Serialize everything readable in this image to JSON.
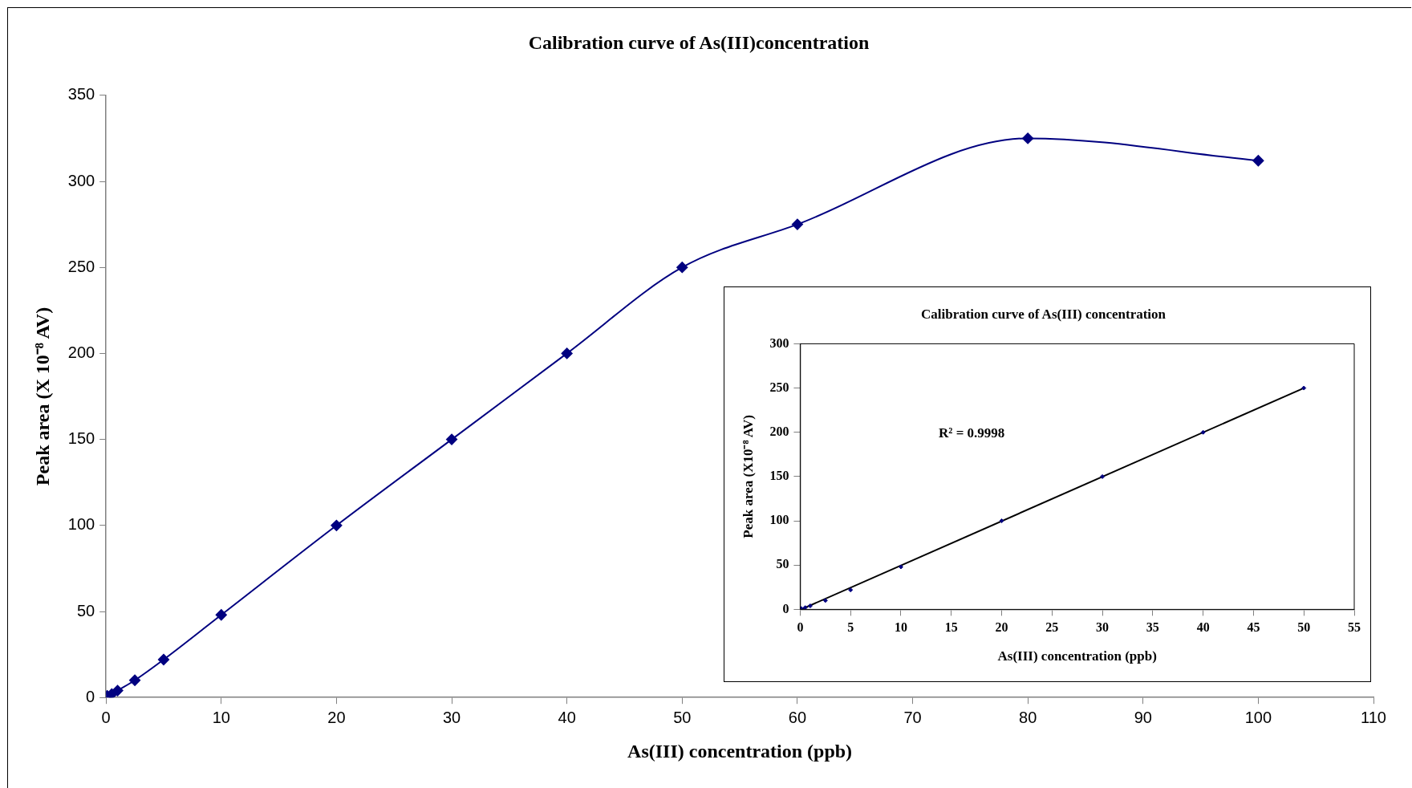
{
  "chart_data": [
    {
      "type": "line",
      "title": "Calibration curve of As(III)concentration",
      "xlabel": "As(III) concentration (ppb)",
      "ylabel": "Peak area (X 10⁻⁸ AV)",
      "xlim": [
        0,
        110
      ],
      "xticks": [
        0,
        10,
        20,
        30,
        40,
        50,
        60,
        70,
        80,
        90,
        100,
        110
      ],
      "ylim": [
        0,
        350
      ],
      "yticks": [
        0,
        50,
        100,
        150,
        200,
        250,
        300,
        350
      ],
      "grid": false,
      "legend": false,
      "marker": "diamond",
      "line_style": "solid",
      "series": [
        {
          "color": "#000080",
          "x": [
            0.1,
            0.5,
            1,
            2.5,
            5,
            10,
            20,
            30,
            40,
            50,
            60,
            80,
            100
          ],
          "values": [
            1,
            2,
            4,
            10,
            22,
            48,
            100,
            150,
            200,
            250,
            275,
            325,
            312
          ]
        }
      ]
    },
    {
      "type": "scatter",
      "title": "Calibration curve of As(III) concentration",
      "xlabel": "As(III) concentration (ppb)",
      "ylabel": "Peak area (X10⁻⁸ AV)",
      "xlim": [
        0,
        55
      ],
      "xticks": [
        0,
        5,
        10,
        15,
        20,
        25,
        30,
        35,
        40,
        45,
        50,
        55
      ],
      "ylim": [
        0,
        300
      ],
      "yticks": [
        0,
        50,
        100,
        150,
        200,
        250,
        300
      ],
      "grid": false,
      "legend": false,
      "marker": "diamond",
      "annotations": [
        "R² = 0.9998"
      ],
      "series": [
        {
          "type": "scatter",
          "color": "#000080",
          "x": [
            0.1,
            0.5,
            1,
            2.5,
            5,
            10,
            20,
            30,
            40,
            50
          ],
          "values": [
            1,
            2,
            4,
            10,
            22,
            48,
            100,
            150,
            200,
            250
          ]
        },
        {
          "type": "line",
          "color": "#000000",
          "marker": "none",
          "x": [
            0.1,
            50
          ],
          "values": [
            0,
            250
          ]
        }
      ]
    }
  ]
}
